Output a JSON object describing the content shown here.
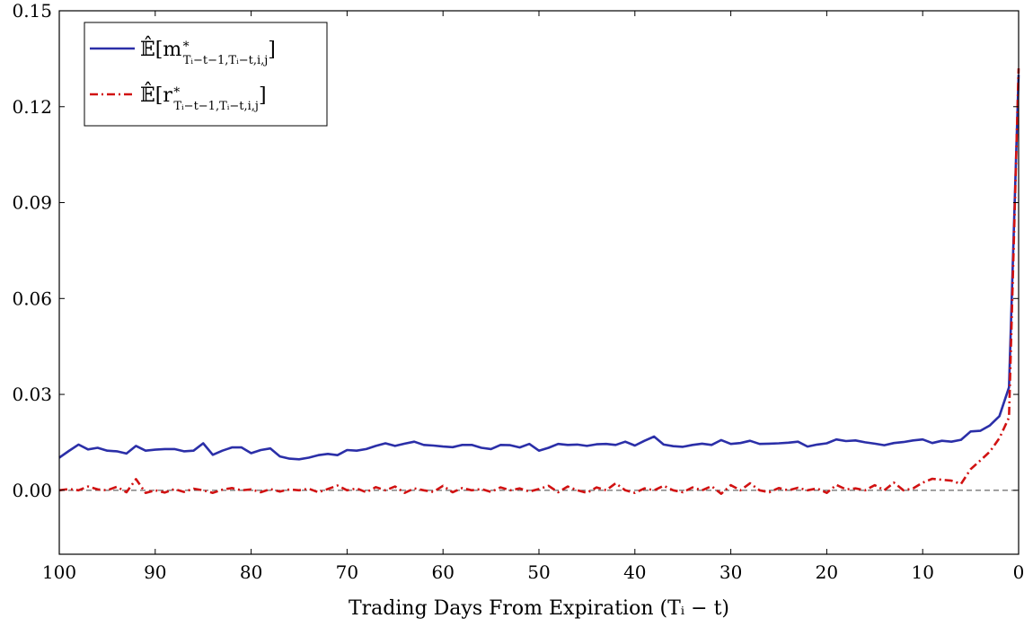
{
  "chart_data": {
    "type": "line",
    "xlabel": "Trading Days From Expiration (Tᵢ − t)",
    "xlim": [
      100,
      0
    ],
    "ylim": [
      -0.02,
      0.15
    ],
    "x_ticks": [
      100,
      90,
      80,
      70,
      60,
      50,
      40,
      30,
      20,
      10,
      0
    ],
    "y_ticks": [
      0.0,
      0.03,
      0.06,
      0.09,
      0.12,
      0.15
    ],
    "y_tick_labels": [
      "0.00",
      "0.03",
      "0.06",
      "0.09",
      "0.12",
      "0.15"
    ],
    "reference_line": {
      "y": 0.0,
      "style": "dashed",
      "color": "#444444"
    },
    "legend": {
      "placement": "top-left"
    },
    "x": [
      100,
      99,
      98,
      97,
      96,
      95,
      94,
      93,
      92,
      91,
      90,
      89,
      88,
      87,
      86,
      85,
      84,
      83,
      82,
      81,
      80,
      79,
      78,
      77,
      76,
      75,
      74,
      73,
      72,
      71,
      70,
      69,
      68,
      67,
      66,
      65,
      64,
      63,
      62,
      61,
      60,
      59,
      58,
      57,
      56,
      55,
      54,
      53,
      52,
      51,
      50,
      49,
      48,
      47,
      46,
      45,
      44,
      43,
      42,
      41,
      40,
      39,
      38,
      37,
      36,
      35,
      34,
      33,
      32,
      31,
      30,
      29,
      28,
      27,
      26,
      25,
      24,
      23,
      22,
      21,
      20,
      19,
      18,
      17,
      16,
      15,
      14,
      13,
      12,
      11,
      10,
      9,
      8,
      7,
      6,
      5,
      4,
      3,
      2,
      1,
      0
    ],
    "series": [
      {
        "legend_base": "𝔼̂[m",
        "legend_sup": "∗",
        "legend_sub": "Tᵢ−t−1,Tᵢ−t,i,j",
        "legend_close": "]",
        "color": "#2b2fa8",
        "style": "solid",
        "values": [
          0.0102,
          0.0123,
          0.0143,
          0.0128,
          0.0133,
          0.0124,
          0.0122,
          0.0115,
          0.0139,
          0.0124,
          0.0127,
          0.0129,
          0.0129,
          0.0122,
          0.0124,
          0.0147,
          0.0111,
          0.0124,
          0.0134,
          0.0134,
          0.0116,
          0.0126,
          0.0131,
          0.0106,
          0.0099,
          0.0097,
          0.0102,
          0.011,
          0.0114,
          0.011,
          0.0126,
          0.0124,
          0.0129,
          0.0139,
          0.0147,
          0.0139,
          0.0146,
          0.0152,
          0.0142,
          0.014,
          0.0137,
          0.0135,
          0.0142,
          0.0142,
          0.0133,
          0.0129,
          0.0142,
          0.0141,
          0.0134,
          0.0145,
          0.0124,
          0.0133,
          0.0145,
          0.0142,
          0.0143,
          0.0139,
          0.0144,
          0.0145,
          0.0142,
          0.0152,
          0.014,
          0.0155,
          0.0168,
          0.0143,
          0.0138,
          0.0136,
          0.0142,
          0.0146,
          0.0142,
          0.0157,
          0.0145,
          0.0148,
          0.0155,
          0.0145,
          0.0146,
          0.0147,
          0.0149,
          0.0152,
          0.0137,
          0.0143,
          0.0147,
          0.0159,
          0.0154,
          0.0156,
          0.015,
          0.0146,
          0.0141,
          0.0148,
          0.0151,
          0.0156,
          0.0159,
          0.0148,
          0.0155,
          0.0152,
          0.0158,
          0.0184,
          0.0186,
          0.0203,
          0.0232,
          0.0322,
          0.13
        ]
      },
      {
        "legend_base": "𝔼̂[r",
        "legend_sup": "∗",
        "legend_sub": "Tᵢ−t−1,Tᵢ−t,i,j",
        "legend_close": "]",
        "color": "#d11212",
        "style": "dash-dot",
        "values": [
          0.0,
          0.0004,
          0.0,
          0.0012,
          0.0003,
          0.0,
          0.0011,
          -0.0006,
          0.0035,
          -0.0008,
          0.0,
          -0.0007,
          0.0004,
          -0.0005,
          0.0005,
          0.0,
          -0.0008,
          0.0002,
          0.0007,
          0.0,
          0.0003,
          -0.0006,
          0.0004,
          -0.0004,
          0.0003,
          0.0,
          0.0005,
          -0.0006,
          0.0004,
          0.0015,
          0.0,
          0.0006,
          -0.0006,
          0.001,
          0.0,
          0.0012,
          -0.0008,
          0.0006,
          0.0,
          -0.0005,
          0.0014,
          -0.0006,
          0.0007,
          0.0,
          0.0004,
          -0.0005,
          0.0009,
          0.0,
          0.0006,
          -0.0004,
          0.0004,
          0.0014,
          -0.0006,
          0.0012,
          0.0,
          -0.0008,
          0.0009,
          0.0,
          0.0022,
          0.0,
          -0.0008,
          0.0006,
          0.0,
          0.0014,
          0.0,
          -0.0006,
          0.0009,
          0.0,
          0.0013,
          -0.0011,
          0.0016,
          0.0,
          0.0022,
          0.0,
          -0.0006,
          0.0007,
          0.0,
          0.0008,
          0.0,
          0.0006,
          -0.0008,
          0.0017,
          0.0003,
          0.0006,
          0.0,
          0.0016,
          0.0,
          0.0024,
          0.0,
          0.0006,
          0.0024,
          0.0036,
          0.0033,
          0.003,
          0.002,
          0.0066,
          0.0093,
          0.0121,
          0.0163,
          0.0228,
          0.132
        ]
      }
    ]
  }
}
